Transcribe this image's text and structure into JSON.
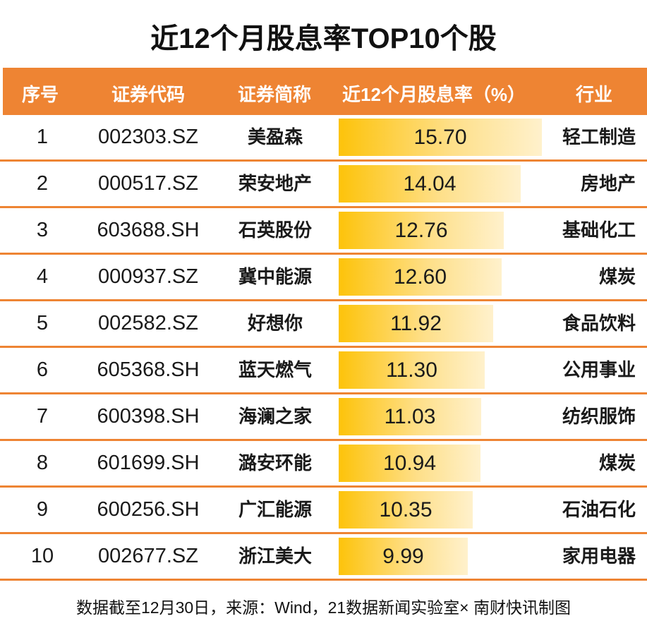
{
  "title": "近12个月股息率TOP10个股",
  "header": {
    "rank": "序号",
    "code": "证券代码",
    "name": "证券简称",
    "rate": "近12个月股息率（%）",
    "industry": "行业"
  },
  "colors": {
    "header_bg": "#EE8433",
    "divider": "#EE8433",
    "bar_start": "#FDC30A",
    "bar_end": "#FFF1CC"
  },
  "rows": [
    {
      "rank": "1",
      "code": "002303.SZ",
      "name": "美盈森",
      "rate": "15.70",
      "industry": "轻工制造"
    },
    {
      "rank": "2",
      "code": "000517.SZ",
      "name": "荣安地产",
      "rate": "14.04",
      "industry": "房地产"
    },
    {
      "rank": "3",
      "code": "603688.SH",
      "name": "石英股份",
      "rate": "12.76",
      "industry": "基础化工"
    },
    {
      "rank": "4",
      "code": "000937.SZ",
      "name": "冀中能源",
      "rate": "12.60",
      "industry": "煤炭"
    },
    {
      "rank": "5",
      "code": "002582.SZ",
      "name": "好想你",
      "rate": "11.92",
      "industry": "食品饮料"
    },
    {
      "rank": "6",
      "code": "605368.SH",
      "name": "蓝天燃气",
      "rate": "11.30",
      "industry": "公用事业"
    },
    {
      "rank": "7",
      "code": "600398.SH",
      "name": "海澜之家",
      "rate": "11.03",
      "industry": "纺织服饰"
    },
    {
      "rank": "8",
      "code": "601699.SH",
      "name": "潞安环能",
      "rate": "10.94",
      "industry": "煤炭"
    },
    {
      "rank": "9",
      "code": "600256.SH",
      "name": "广汇能源",
      "rate": "10.35",
      "industry": "石油石化"
    },
    {
      "rank": "10",
      "code": "002677.SZ",
      "name": "浙江美大",
      "rate": "9.99",
      "industry": "家用电器"
    }
  ],
  "footnote": "数据截至12月30日，来源：Wind，21数据新闻实验室× 南财快讯制图",
  "chart_data": {
    "type": "table",
    "title": "近12个月股息率TOP10个股",
    "columns": [
      "序号",
      "证券代码",
      "证券简称",
      "近12个月股息率（%）",
      "行业"
    ],
    "categories": [
      "美盈森",
      "荣安地产",
      "石英股份",
      "冀中能源",
      "好想你",
      "蓝天燃气",
      "海澜之家",
      "潞安环能",
      "广汇能源",
      "浙江美大"
    ],
    "codes": [
      "002303.SZ",
      "000517.SZ",
      "603688.SH",
      "000937.SZ",
      "002582.SZ",
      "605368.SH",
      "600398.SH",
      "601699.SH",
      "600256.SH",
      "002677.SZ"
    ],
    "industries": [
      "轻工制造",
      "房地产",
      "基础化工",
      "煤炭",
      "食品饮料",
      "公用事业",
      "纺织服饰",
      "煤炭",
      "石油石化",
      "家用电器"
    ],
    "series": [
      {
        "name": "近12个月股息率（%）",
        "values": [
          15.7,
          14.04,
          12.76,
          12.6,
          11.92,
          11.3,
          11.03,
          10.94,
          10.35,
          9.99
        ]
      }
    ],
    "bar_embedded": true,
    "note": "数据截至12月30日，来源：Wind，21数据新闻实验室× 南财快讯制图"
  }
}
